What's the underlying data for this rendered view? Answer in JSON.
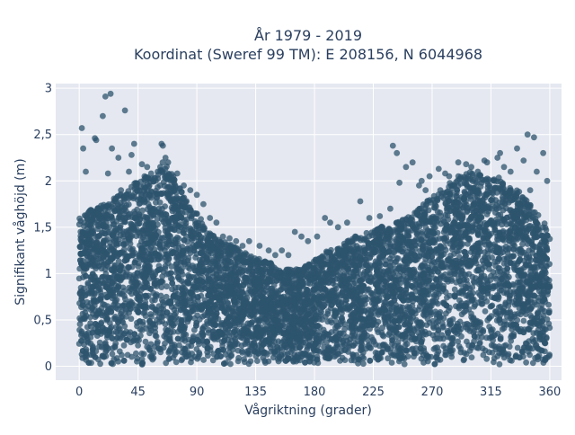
{
  "chart_data": {
    "type": "scatter",
    "title": "År 1979 - 2019",
    "subtitle": "Koordinat (Sweref 99 TM): E 208156, N 6044968",
    "xlabel": "Vågriktning (grader)",
    "ylabel": "Signifikant våghöjd (m)",
    "xlim": [
      -18,
      369
    ],
    "ylim": [
      -0.15,
      3.05
    ],
    "x_ticks": [
      0,
      45,
      90,
      135,
      180,
      225,
      270,
      315,
      360
    ],
    "x_tick_labels": [
      "0",
      "45",
      "90",
      "135",
      "180",
      "225",
      "270",
      "315",
      "360"
    ],
    "y_ticks": [
      0,
      0.5,
      1,
      1.5,
      2,
      2.5,
      3
    ],
    "y_tick_labels": [
      "0",
      "0,5",
      "1",
      "1,5",
      "2",
      "2,5",
      "3"
    ],
    "grid": true,
    "legend": "none",
    "colors": {
      "marker": "#2e546e",
      "plot_bg": "#e5e8f0",
      "grid": "#ffffff",
      "text": "#2a3f5f"
    },
    "envelope": {
      "x": [
        0,
        10,
        20,
        30,
        40,
        50,
        60,
        65,
        70,
        80,
        90,
        100,
        110,
        120,
        130,
        140,
        150,
        160,
        170,
        180,
        190,
        200,
        210,
        220,
        230,
        240,
        250,
        260,
        270,
        280,
        290,
        300,
        310,
        320,
        330,
        340,
        350,
        360
      ],
      "upper": [
        1.6,
        1.7,
        1.75,
        1.85,
        1.95,
        2.05,
        2.05,
        2.25,
        2.1,
        1.85,
        1.65,
        1.45,
        1.35,
        1.3,
        1.2,
        1.15,
        1.1,
        1.05,
        1.05,
        1.15,
        1.25,
        1.3,
        1.4,
        1.45,
        1.5,
        1.55,
        1.6,
        1.7,
        1.85,
        1.95,
        2.05,
        2.1,
        2.05,
        2.05,
        1.95,
        1.85,
        1.65,
        1.5
      ]
    },
    "outliers": {
      "x": [
        2,
        3,
        5,
        12,
        13,
        18,
        20,
        22,
        24,
        25,
        30,
        32,
        35,
        38,
        40,
        42,
        44,
        48,
        50,
        52,
        55,
        60,
        62,
        63,
        64,
        66,
        68,
        70,
        72,
        75,
        80,
        85,
        90,
        95,
        100,
        105,
        110,
        115,
        120,
        125,
        130,
        138,
        145,
        150,
        155,
        160,
        165,
        170,
        175,
        182,
        188,
        192,
        198,
        205,
        215,
        222,
        230,
        238,
        240,
        243,
        245,
        250,
        255,
        260,
        262,
        265,
        268,
        275,
        280,
        283,
        290,
        292,
        296,
        300,
        305,
        310,
        312,
        318,
        320,
        322,
        325,
        330,
        335,
        340,
        343,
        345,
        348,
        350,
        355,
        358
      ],
      "y": [
        2.57,
        2.35,
        2.1,
        2.46,
        2.44,
        2.7,
        2.91,
        2.08,
        2.94,
        2.35,
        2.25,
        1.9,
        2.76,
        2.1,
        2.28,
        2.4,
        1.95,
        2.18,
        2.05,
        2.15,
        2.08,
        2.1,
        2.15,
        2.4,
        2.38,
        2.25,
        2.2,
        2.0,
        2.05,
        2.08,
        1.95,
        1.9,
        1.85,
        1.75,
        1.6,
        1.55,
        1.4,
        1.38,
        1.35,
        1.3,
        1.35,
        1.3,
        1.25,
        1.2,
        1.25,
        1.2,
        1.45,
        1.4,
        1.35,
        1.4,
        1.6,
        1.55,
        1.5,
        1.55,
        1.78,
        1.6,
        1.62,
        1.7,
        2.38,
        2.3,
        1.98,
        2.15,
        2.2,
        1.95,
        2.0,
        1.9,
        2.05,
        2.13,
        2.08,
        2.05,
        2.2,
        1.97,
        2.18,
        2.15,
        2.1,
        2.22,
        2.2,
        2.0,
        2.25,
        2.3,
        2.15,
        2.1,
        2.35,
        2.22,
        2.5,
        1.9,
        2.47,
        2.1,
        2.3,
        2.0
      ]
    }
  }
}
